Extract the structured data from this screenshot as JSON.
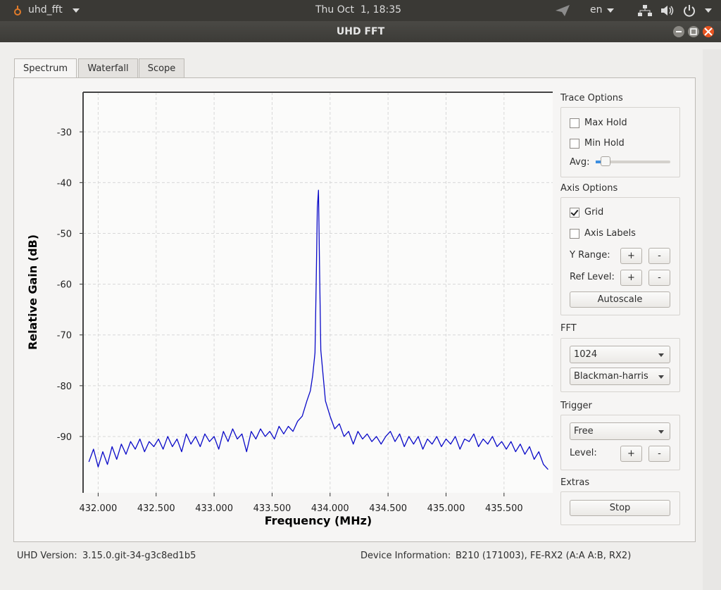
{
  "topbar": {
    "app": "uhd_fft",
    "clock": "Thu Oct  1, 18:35",
    "language": "en"
  },
  "window": {
    "title": "UHD FFT"
  },
  "tabs": [
    "Spectrum",
    "Waterfall",
    "Scope"
  ],
  "chart_data": {
    "type": "line",
    "xlabel": "Frequency (MHz)",
    "ylabel": "Relative Gain (dB)",
    "color": "#0a0ac8",
    "grid": true,
    "xlim": [
      431.87,
      435.92
    ],
    "ylim": [
      -101.1,
      -22.2
    ],
    "xticks": [
      {
        "value": 432,
        "label": "432.000"
      },
      {
        "value": 432.5,
        "label": "432.500"
      },
      {
        "value": 433,
        "label": "433.000"
      },
      {
        "value": 433.5,
        "label": "433.500"
      },
      {
        "value": 434,
        "label": "434.000"
      },
      {
        "value": 434.5,
        "label": "434.500"
      },
      {
        "value": 435,
        "label": "435.000"
      },
      {
        "value": 435.5,
        "label": "435.500"
      }
    ],
    "yticks": [
      -30,
      -40,
      -50,
      -60,
      -70,
      -80,
      -90
    ],
    "x": [
      431.92,
      431.96,
      432.0,
      432.04,
      432.08,
      432.12,
      432.16,
      432.2,
      432.24,
      432.28,
      432.32,
      432.36,
      432.4,
      432.44,
      432.48,
      432.52,
      432.56,
      432.6,
      432.64,
      432.68,
      432.72,
      432.76,
      432.8,
      432.84,
      432.88,
      432.92,
      432.96,
      433.0,
      433.04,
      433.08,
      433.12,
      433.16,
      433.2,
      433.24,
      433.28,
      433.32,
      433.36,
      433.4,
      433.44,
      433.48,
      433.52,
      433.56,
      433.6,
      433.64,
      433.68,
      433.72,
      433.76,
      433.8,
      433.83,
      433.85,
      433.87,
      433.88,
      433.89,
      433.9,
      433.91,
      433.92,
      433.94,
      433.96,
      434.0,
      434.04,
      434.08,
      434.12,
      434.16,
      434.2,
      434.24,
      434.28,
      434.32,
      434.36,
      434.4,
      434.44,
      434.48,
      434.52,
      434.56,
      434.6,
      434.64,
      434.68,
      434.72,
      434.76,
      434.8,
      434.84,
      434.88,
      434.92,
      434.96,
      435.0,
      435.04,
      435.08,
      435.12,
      435.16,
      435.2,
      435.24,
      435.28,
      435.32,
      435.36,
      435.4,
      435.44,
      435.48,
      435.52,
      435.56,
      435.6,
      435.64,
      435.68,
      435.72,
      435.76,
      435.8,
      435.84,
      435.88
    ],
    "values": [
      -95,
      -92.5,
      -96,
      -93,
      -95.5,
      -92,
      -94.5,
      -91.5,
      -93.5,
      -91,
      -92.5,
      -90.5,
      -93,
      -91,
      -92,
      -90.5,
      -92.5,
      -90,
      -92,
      -90.5,
      -93,
      -89.5,
      -91.5,
      -90,
      -92,
      -89.5,
      -91,
      -90,
      -92.5,
      -89,
      -91,
      -88.5,
      -90.5,
      -89.5,
      -93,
      -89,
      -90.5,
      -88.5,
      -90,
      -89,
      -90.5,
      -88,
      -89.5,
      -88,
      -89,
      -87,
      -86,
      -83,
      -81,
      -78,
      -73.5,
      -60,
      -45,
      -41.5,
      -58,
      -73,
      -78,
      -83,
      -86,
      -88.5,
      -87.5,
      -90,
      -89,
      -91.5,
      -89,
      -90.5,
      -89.5,
      -91,
      -90,
      -91.5,
      -90,
      -89,
      -91,
      -89.5,
      -92,
      -90,
      -91.5,
      -90,
      -92.5,
      -90.5,
      -91.5,
      -90,
      -92,
      -90.5,
      -91.5,
      -90,
      -92.5,
      -90.5,
      -91,
      -89.5,
      -92,
      -90.5,
      -91.5,
      -90,
      -92,
      -91,
      -92.5,
      -91,
      -93,
      -91.5,
      -93.5,
      -92,
      -94.5,
      -93,
      -95.5,
      -96.5
    ]
  },
  "controls": {
    "trace_options": {
      "title": "Trace Options",
      "max_hold": {
        "label": "Max Hold",
        "checked": false
      },
      "min_hold": {
        "label": "Min Hold",
        "checked": false
      },
      "avg": "Avg:"
    },
    "axis_options": {
      "title": "Axis Options",
      "grid": {
        "label": "Grid",
        "checked": true
      },
      "axis_labels": {
        "label": "Axis Labels",
        "checked": false
      },
      "y_range": {
        "label": "Y Range:",
        "buttons": [
          "+",
          "-"
        ]
      },
      "ref_level": {
        "label": "Ref Level:",
        "buttons": [
          "+",
          "-"
        ]
      },
      "autoscale": "Autoscale"
    },
    "fft": {
      "title": "FFT",
      "size": "1024",
      "window": "Blackman-harris"
    },
    "trigger": {
      "title": "Trigger",
      "mode": "Free",
      "level": {
        "label": "Level:",
        "buttons": [
          "+",
          "-"
        ]
      }
    },
    "extras": {
      "title": "Extras",
      "stop": "Stop"
    }
  },
  "footer": {
    "uhd_label": "UHD Version:",
    "uhd_version": "3.15.0.git-34-g3c8ed1b5",
    "device_label": "Device Information:",
    "device": "B210 (171003), FE-RX2 (A:A A:B, RX2)"
  }
}
